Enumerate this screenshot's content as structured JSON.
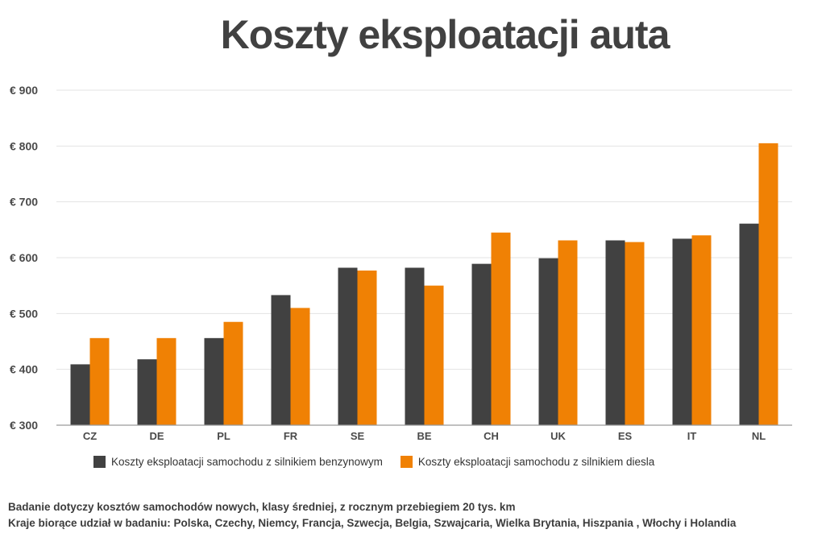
{
  "chart_data": {
    "type": "bar",
    "title": "Koszty eksploatacji auta",
    "categories": [
      "CZ",
      "DE",
      "PL",
      "FR",
      "SE",
      "BE",
      "CH",
      "UK",
      "ES",
      "IT",
      "NL"
    ],
    "series": [
      {
        "name": "Koszty eksploatacji samochodu z silnikiem benzynowym",
        "color": "#414141",
        "values": [
          409,
          418,
          456,
          533,
          582,
          582,
          589,
          599,
          631,
          634,
          661
        ]
      },
      {
        "name": "Koszty eksploatacji samochodu z silnikiem diesla",
        "color": "#f08104",
        "values": [
          456,
          456,
          485,
          510,
          577,
          550,
          645,
          631,
          628,
          640,
          805
        ]
      }
    ],
    "ylim": [
      300,
      900
    ],
    "yticks": [
      300,
      400,
      500,
      600,
      700,
      800,
      900
    ],
    "ytick_labels": [
      "€ 300",
      "€ 400",
      "€ 500",
      "€ 600",
      "€ 700",
      "€ 800",
      "€ 900"
    ],
    "xlabel": "",
    "ylabel": "",
    "grid": true,
    "legend_position": "bottom"
  },
  "notes": {
    "line1": "Badanie dotyczy kosztów samochodów nowych, klasy średniej, z rocznym przebiegiem 20 tys. km",
    "line2": "Kraje biorące udział w badaniu: Polska, Czechy, Niemcy, Francja, Szwecja, Belgia, Szwajcaria, Wielka Brytania, Hiszpania , Włochy i Holandia"
  }
}
